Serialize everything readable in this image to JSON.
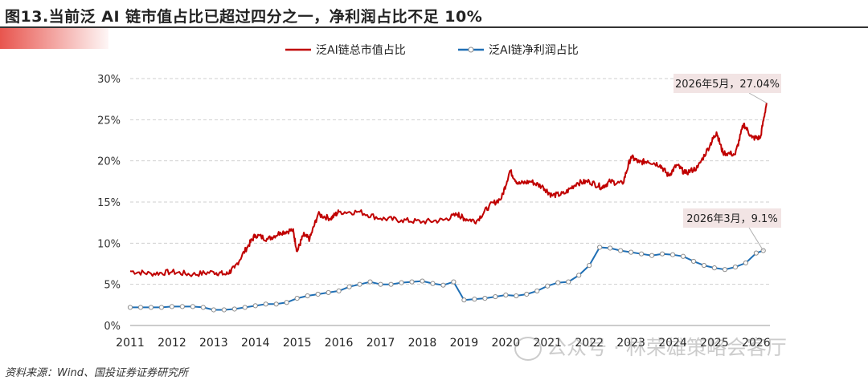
{
  "title": "图13.当前泛 AI 链市值占比已超过四分之一，净利润占比不足 10%",
  "source": "资料来源：Wind、国投证券证券研究所",
  "watermark": "公众号 · 林荣雄策略会客厅",
  "chart_data": {
    "type": "line",
    "xlim": [
      2011,
      2026.33
    ],
    "ylim": [
      0,
      30
    ],
    "y_ticks": [
      0,
      5,
      10,
      15,
      20,
      25,
      30
    ],
    "y_tick_labels": [
      "0%",
      "5%",
      "10%",
      "15%",
      "20%",
      "25%",
      "30%"
    ],
    "x_tick_labels": [
      "2011",
      "2012",
      "2013",
      "2014",
      "2015",
      "2016",
      "2017",
      "2018",
      "2019",
      "2020",
      "2021",
      "2022",
      "2023",
      "2024",
      "2025",
      "2026"
    ],
    "grid": "horizontal-dashed",
    "legend_position": "top-center",
    "series": [
      {
        "name": "泛AI链总市值占比",
        "color": "#c00000",
        "marker": "none",
        "x": [
          2011.0,
          2011.5,
          2012.0,
          2012.5,
          2013.0,
          2013.3,
          2013.5,
          2013.8,
          2014.0,
          2014.3,
          2014.6,
          2014.9,
          2015.0,
          2015.15,
          2015.3,
          2015.5,
          2015.8,
          2016.0,
          2016.5,
          2017.0,
          2017.5,
          2018.0,
          2018.5,
          2018.85,
          2019.0,
          2019.3,
          2019.6,
          2019.9,
          2020.1,
          2020.3,
          2020.6,
          2020.9,
          2021.1,
          2021.4,
          2021.7,
          2022.0,
          2022.3,
          2022.5,
          2022.8,
          2023.0,
          2023.2,
          2023.4,
          2023.7,
          2023.9,
          2024.1,
          2024.3,
          2024.6,
          2024.9,
          2025.05,
          2025.2,
          2025.5,
          2025.7,
          2025.9,
          2026.1,
          2026.25
        ],
        "y": [
          6.6,
          6.3,
          6.5,
          6.2,
          6.5,
          6.2,
          7.0,
          9.5,
          11.0,
          10.5,
          11.3,
          11.6,
          9.0,
          11.0,
          10.5,
          13.5,
          13.0,
          13.8,
          13.8,
          13.0,
          12.8,
          12.6,
          12.8,
          13.5,
          13.0,
          12.7,
          14.5,
          15.5,
          18.8,
          17.2,
          17.5,
          16.8,
          15.8,
          16.0,
          17.3,
          17.5,
          16.8,
          17.5,
          17.2,
          20.5,
          19.8,
          20.0,
          19.5,
          18.2,
          19.5,
          18.5,
          19.2,
          22.0,
          23.5,
          21.0,
          20.8,
          24.5,
          22.8,
          22.8,
          27.04
        ]
      },
      {
        "name": "泛AI链净利润占比",
        "color": "#1f6fb5",
        "marker": "circle",
        "x": [
          2011.0,
          2011.25,
          2011.5,
          2011.75,
          2012.0,
          2012.25,
          2012.5,
          2012.75,
          2013.0,
          2013.25,
          2013.5,
          2013.75,
          2014.0,
          2014.25,
          2014.5,
          2014.75,
          2015.0,
          2015.25,
          2015.5,
          2015.75,
          2016.0,
          2016.25,
          2016.5,
          2016.75,
          2017.0,
          2017.25,
          2017.5,
          2017.75,
          2018.0,
          2018.25,
          2018.5,
          2018.75,
          2019.0,
          2019.25,
          2019.5,
          2019.75,
          2020.0,
          2020.25,
          2020.5,
          2020.75,
          2021.0,
          2021.25,
          2021.5,
          2021.75,
          2022.0,
          2022.25,
          2022.5,
          2022.75,
          2023.0,
          2023.25,
          2023.5,
          2023.75,
          2024.0,
          2024.25,
          2024.5,
          2024.75,
          2025.0,
          2025.25,
          2025.5,
          2025.75,
          2026.0,
          2026.17
        ],
        "y": [
          2.2,
          2.2,
          2.2,
          2.2,
          2.3,
          2.3,
          2.3,
          2.2,
          1.9,
          1.9,
          2.0,
          2.2,
          2.4,
          2.6,
          2.6,
          2.8,
          3.3,
          3.6,
          3.8,
          4.0,
          4.2,
          4.7,
          5.0,
          5.3,
          5.0,
          5.0,
          5.2,
          5.3,
          5.4,
          5.1,
          4.9,
          5.3,
          3.1,
          3.2,
          3.3,
          3.5,
          3.7,
          3.6,
          3.8,
          4.2,
          4.8,
          5.2,
          5.3,
          6.1,
          7.3,
          9.5,
          9.4,
          9.1,
          8.9,
          8.7,
          8.5,
          8.7,
          8.6,
          8.4,
          7.8,
          7.3,
          7.0,
          6.8,
          7.1,
          7.6,
          8.8,
          9.1
        ]
      }
    ],
    "annotations": [
      {
        "text": "2026年5月，27.04%",
        "x": 2026.25,
        "y": 27.04
      },
      {
        "text": "2026年3月，9.1%",
        "x": 2026.17,
        "y": 9.1
      }
    ]
  }
}
